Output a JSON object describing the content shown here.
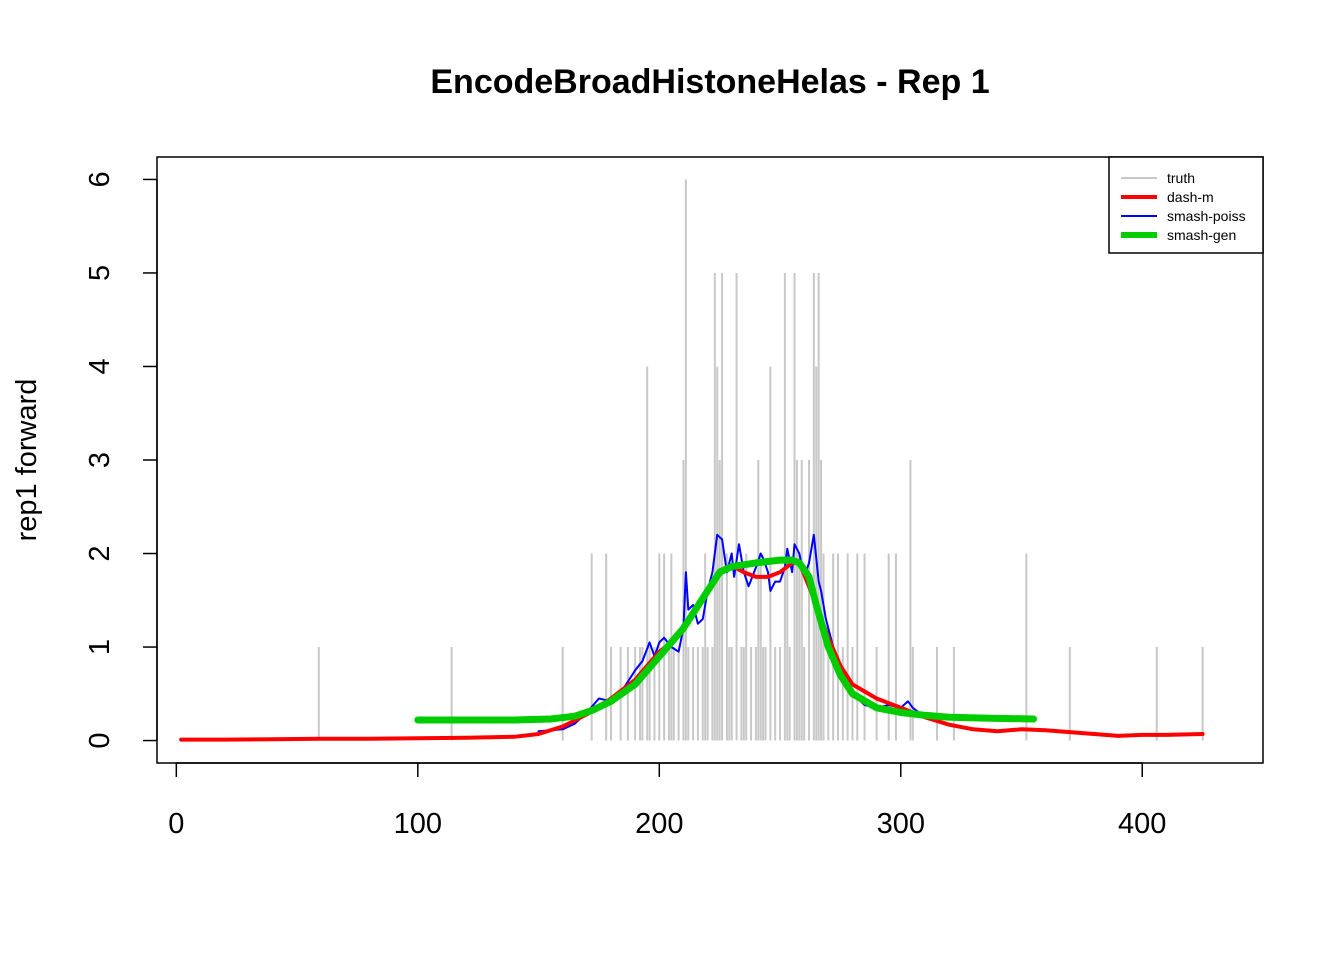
{
  "chart_data": {
    "type": "line",
    "title": "EncodeBroadHistoneHelas - Rep 1",
    "xlabel": "",
    "ylabel": "rep1 forward",
    "xlim": [
      -8,
      450
    ],
    "ylim": [
      -0.24,
      6.24
    ],
    "x_ticks": [
      0,
      100,
      200,
      300,
      400
    ],
    "y_ticks": [
      0,
      1,
      2,
      3,
      4,
      5,
      6
    ],
    "grid": false,
    "legend_position": "top-right",
    "legend": [
      {
        "label": "truth",
        "color": "#c8c8c8"
      },
      {
        "label": "dash-m",
        "color": "#ff0000"
      },
      {
        "label": "smash-poiss",
        "color": "#0000ff"
      },
      {
        "label": "smash-gen",
        "color": "#00cd00"
      }
    ],
    "truth_bars": {
      "name": "truth",
      "color": "#c8c8c8",
      "x": [
        59,
        114,
        160,
        172,
        178,
        180,
        184,
        187,
        190,
        192,
        193,
        195,
        196,
        198,
        200,
        202,
        204,
        205,
        206,
        208,
        210,
        211,
        212,
        214,
        216,
        218,
        219,
        220,
        222,
        223,
        224,
        225,
        226,
        228,
        229,
        230,
        232,
        234,
        235,
        236,
        238,
        240,
        241,
        242,
        243,
        244,
        246,
        248,
        250,
        252,
        253,
        254,
        256,
        257,
        258,
        259,
        260,
        262,
        264,
        265,
        266,
        267,
        268,
        270,
        272,
        274,
        276,
        278,
        280,
        282,
        285,
        290,
        295,
        298,
        304,
        305,
        315,
        322,
        352,
        370,
        406,
        425
      ],
      "y": [
        1,
        1,
        1,
        2,
        2,
        1,
        1,
        1,
        1,
        1,
        1,
        4,
        1,
        1,
        2,
        2,
        1,
        2,
        1,
        1,
        3,
        6,
        1,
        1,
        1,
        1,
        2,
        1,
        1,
        5,
        4,
        3,
        5,
        2,
        1,
        1,
        5,
        1,
        1,
        2,
        1,
        1,
        3,
        2,
        1,
        1,
        4,
        1,
        1,
        5,
        2,
        1,
        5,
        3,
        2,
        3,
        1,
        3,
        5,
        4,
        5,
        3,
        2,
        1,
        2,
        2,
        1,
        2,
        1,
        2,
        2,
        1,
        2,
        2,
        3,
        1,
        1,
        1,
        2,
        1,
        1,
        1
      ]
    },
    "series": [
      {
        "name": "smash-poiss",
        "color": "#0000ff",
        "x": [
          150,
          160,
          165,
          170,
          175,
          180,
          185,
          190,
          193,
          196,
          198,
          200,
          202,
          205,
          208,
          210,
          211,
          212,
          214,
          216,
          218,
          220,
          222,
          224,
          226,
          228,
          230,
          231,
          233,
          235,
          237,
          240,
          242,
          243,
          245,
          246,
          248,
          250,
          252,
          253,
          255,
          256,
          258,
          260,
          262,
          264,
          266,
          267,
          269,
          272,
          275,
          280,
          285,
          290,
          295,
          300,
          303,
          305,
          310,
          320,
          330
        ],
        "y": [
          0.1,
          0.12,
          0.18,
          0.3,
          0.45,
          0.42,
          0.55,
          0.75,
          0.85,
          1.05,
          0.9,
          1.05,
          1.1,
          1.0,
          0.95,
          1.2,
          1.8,
          1.4,
          1.45,
          1.25,
          1.3,
          1.6,
          1.8,
          2.2,
          2.15,
          1.8,
          2.0,
          1.75,
          2.1,
          1.8,
          1.65,
          1.85,
          2.0,
          1.95,
          1.8,
          1.6,
          1.7,
          1.7,
          1.85,
          2.05,
          1.8,
          2.1,
          2.0,
          1.75,
          1.9,
          2.2,
          1.7,
          1.6,
          1.3,
          1.0,
          0.7,
          0.5,
          0.38,
          0.35,
          0.38,
          0.35,
          0.42,
          0.35,
          0.25,
          0.18,
          0.12
        ]
      },
      {
        "name": "dash-m",
        "color": "#ff0000",
        "x": [
          2,
          20,
          40,
          60,
          80,
          100,
          120,
          140,
          150,
          160,
          170,
          180,
          190,
          200,
          205,
          210,
          215,
          220,
          225,
          230,
          235,
          240,
          245,
          250,
          255,
          258,
          262,
          265,
          270,
          275,
          280,
          290,
          300,
          310,
          320,
          330,
          340,
          350,
          360,
          370,
          380,
          390,
          400,
          410,
          425
        ],
        "y": [
          0.01,
          0.01,
          0.015,
          0.02,
          0.02,
          0.025,
          0.03,
          0.04,
          0.07,
          0.15,
          0.28,
          0.45,
          0.65,
          0.95,
          1.05,
          1.2,
          1.4,
          1.6,
          1.82,
          1.87,
          1.8,
          1.75,
          1.75,
          1.8,
          1.9,
          1.9,
          1.65,
          1.45,
          1.1,
          0.8,
          0.6,
          0.45,
          0.35,
          0.25,
          0.17,
          0.12,
          0.1,
          0.12,
          0.11,
          0.09,
          0.07,
          0.05,
          0.06,
          0.06,
          0.07
        ]
      },
      {
        "name": "smash-gen",
        "color": "#00cd00",
        "x": [
          100,
          120,
          140,
          155,
          165,
          172,
          180,
          190,
          200,
          210,
          215,
          220,
          225,
          230,
          240,
          250,
          255,
          258,
          262,
          265,
          270,
          275,
          280,
          290,
          300,
          310,
          320,
          335,
          355
        ],
        "y": [
          0.22,
          0.22,
          0.22,
          0.23,
          0.26,
          0.32,
          0.42,
          0.6,
          0.9,
          1.2,
          1.4,
          1.6,
          1.8,
          1.86,
          1.9,
          1.93,
          1.93,
          1.9,
          1.75,
          1.45,
          1.0,
          0.7,
          0.5,
          0.35,
          0.3,
          0.27,
          0.25,
          0.24,
          0.23
        ]
      }
    ]
  }
}
